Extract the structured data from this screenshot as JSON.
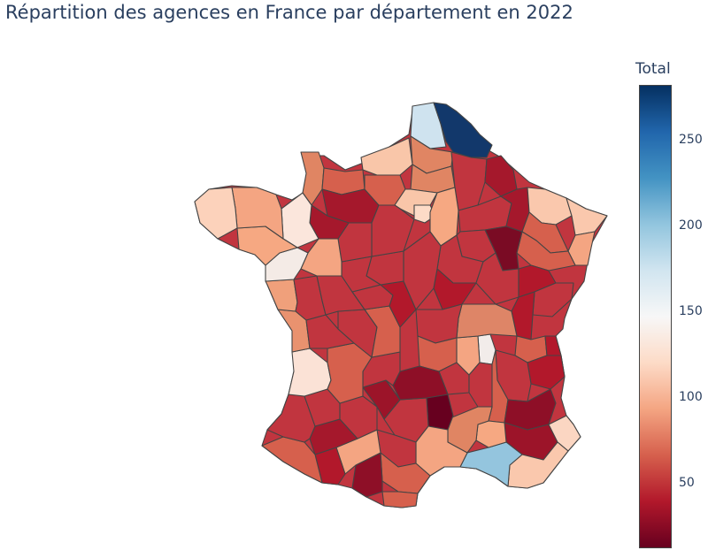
{
  "title": "Répartition des agences en France par département en 2022",
  "legend": {
    "title": "Total",
    "ticks": [
      {
        "label": "250",
        "value": 250
      },
      {
        "label": "200",
        "value": 200
      },
      {
        "label": "150",
        "value": 150
      },
      {
        "label": "100",
        "value": 100
      },
      {
        "label": "50",
        "value": 50
      }
    ],
    "range": [
      12,
      282
    ],
    "colorscale": [
      "#67001f",
      "#b2182b",
      "#d6604d",
      "#f4a582",
      "#fddbc7",
      "#f7f7f7",
      "#d1e5f0",
      "#92c5de",
      "#4393c3",
      "#2166ac",
      "#053061"
    ]
  },
  "chart_data": {
    "type": "choropleth",
    "title": "Répartition des agences en France par département en 2022",
    "colorbar_title": "Total",
    "colorbar_range": [
      12,
      282
    ],
    "colorscale": "RdBu (reversed)",
    "regions": [
      {
        "id": "nord",
        "value": 282
      },
      {
        "id": "pas-de-calais",
        "value": 190
      },
      {
        "id": "bouches-du-rhone",
        "value": 195
      },
      {
        "id": "finistere",
        "value": 125
      },
      {
        "id": "ille-et-vilaine",
        "value": 140
      },
      {
        "id": "loire-atlantique",
        "value": 148
      },
      {
        "id": "gironde",
        "value": 130
      },
      {
        "id": "seine-maritime",
        "value": 115
      },
      {
        "id": "alpes-maritimes",
        "value": 120
      },
      {
        "id": "var",
        "value": 110
      },
      {
        "id": "paris-region",
        "value": 115
      },
      {
        "id": "rhone",
        "value": 145
      },
      {
        "id": "bas-rhin",
        "value": 110
      },
      {
        "id": "haut-rhin",
        "value": 90
      },
      {
        "id": "aude",
        "value": 20
      },
      {
        "id": "lozere",
        "value": 12
      },
      {
        "id": "haute-marne",
        "value": 15
      }
    ]
  }
}
